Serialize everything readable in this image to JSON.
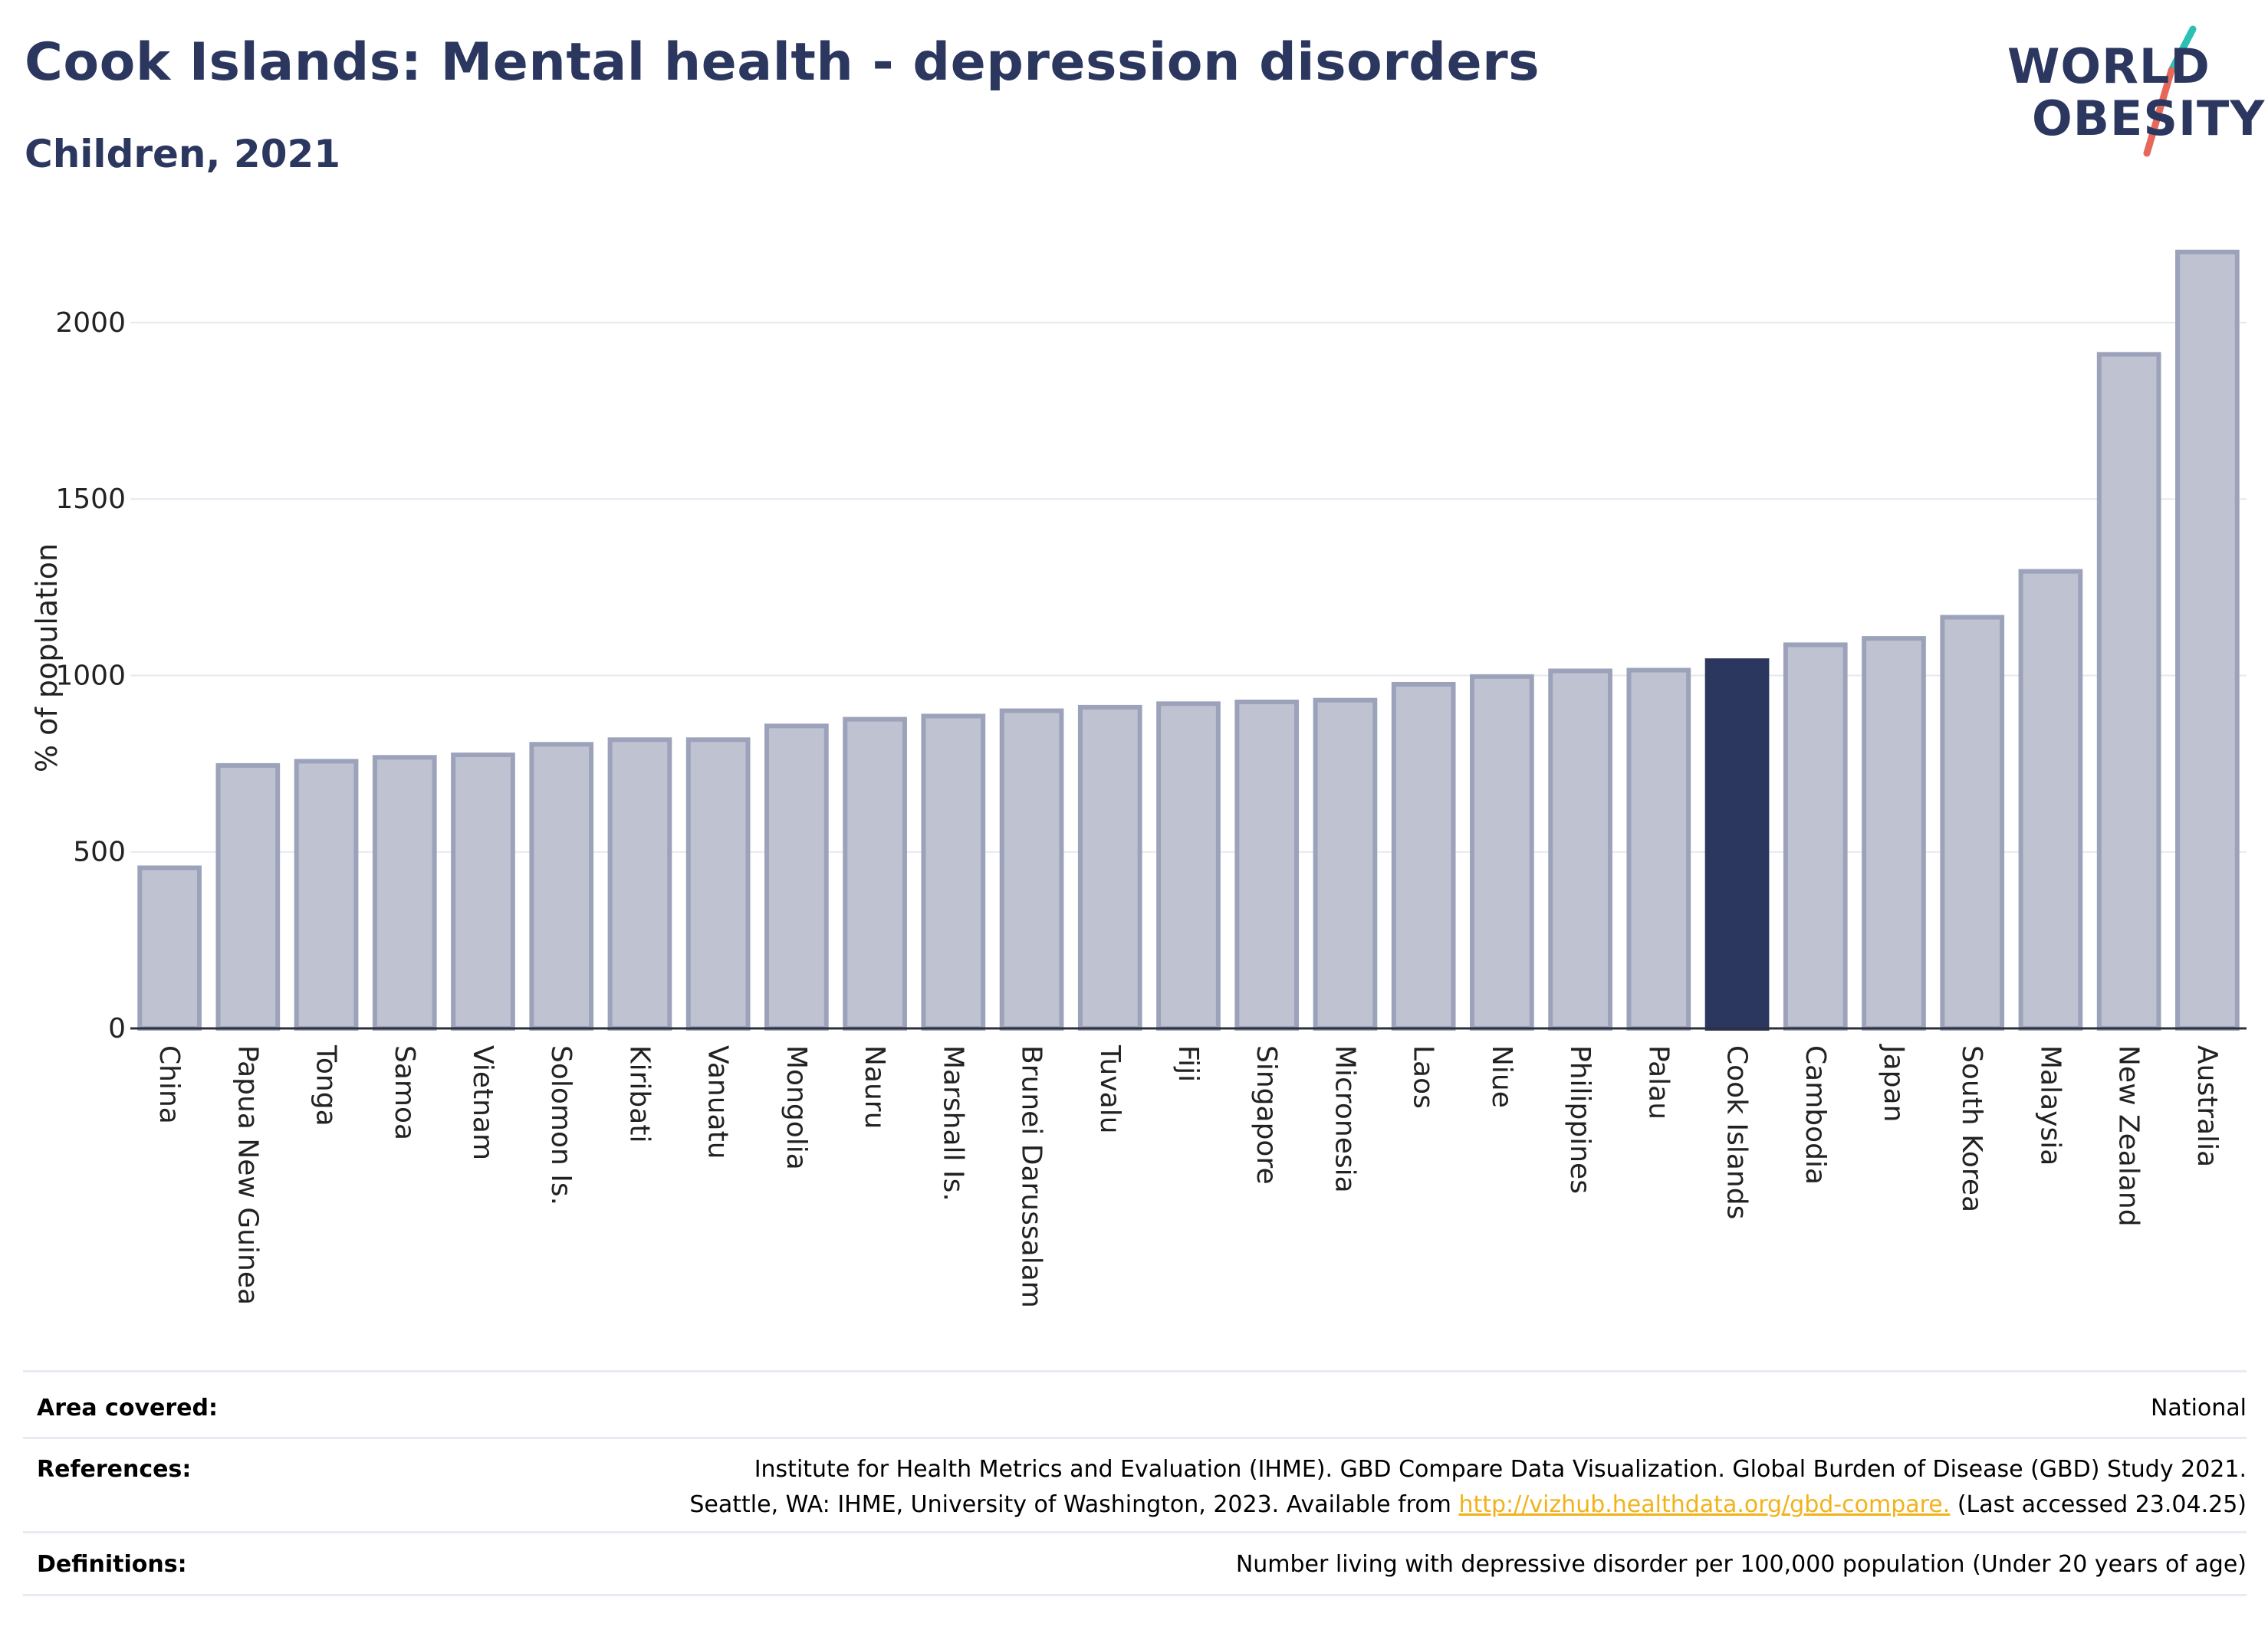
{
  "header": {
    "title": "Cook Islands: Mental health - depression disorders",
    "subtitle": "Children, 2021"
  },
  "logo": {
    "line1": "WORLD",
    "line2": "OBESITY",
    "colors": {
      "text": "#2b375f",
      "slash_top": "#2bbfb5",
      "slash_bottom": "#e5685a"
    }
  },
  "colors": {
    "bar_default": "#bfc3d1",
    "bar_default_stroke": "#9ca2ba",
    "bar_highlight": "#2b375f",
    "gridline": "#e6e8ef",
    "axis": "#2b2f3e"
  },
  "chart_data": {
    "type": "bar",
    "ylabel": "% of population",
    "yticks": [
      0,
      500,
      1000,
      1500,
      2000
    ],
    "ylim": [
      0,
      2230
    ],
    "grid": true,
    "highlight": "Cook Islands",
    "categories": [
      "China",
      "Papua New Guinea",
      "Tonga",
      "Samoa",
      "Vietnam",
      "Solomon Is.",
      "Kiribati",
      "Vanuatu",
      "Mongolia",
      "Nauru",
      "Marshall Is.",
      "Brunei Darussalam",
      "Tuvalu",
      "Fiji",
      "Singapore",
      "Micronesia",
      "Laos",
      "Niue",
      "Philippines",
      "Palau",
      "Cook Islands",
      "Cambodia",
      "Japan",
      "South Korea",
      "Malaysia",
      "New Zealand",
      "Australia"
    ],
    "values": [
      455,
      745,
      757,
      768,
      775,
      805,
      818,
      818,
      857,
      876,
      885,
      900,
      910,
      920,
      925,
      930,
      975,
      997,
      1013,
      1015,
      1042,
      1087,
      1105,
      1165,
      1295,
      1910,
      2200
    ]
  },
  "info": {
    "area_label": "Area covered:",
    "area_value": "National",
    "references_label": "References:",
    "references_line1": "Institute for Health Metrics and Evaluation (IHME). GBD Compare Data Visualization. Global Burden of Disease (GBD) Study 2021.",
    "references_line2_prefix": "Seattle, WA: IHME, University of Washington, 2023. Available from ",
    "references_link": "http://vizhub.healthdata.org/gbd-compare.",
    "references_line2_suffix": " (Last accessed 23.04.25)",
    "definitions_label": "Definitions:",
    "definitions_value": "Number living with depressive disorder per 100,000 population (Under 20 years of age)"
  }
}
